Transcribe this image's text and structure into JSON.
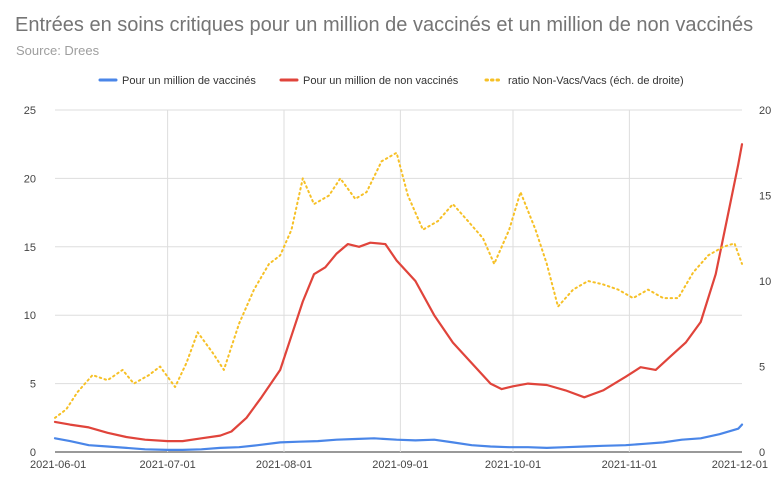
{
  "chart_data": {
    "type": "line",
    "title": "Entrées en soins critiques pour un million de vaccinés et un million de non vaccinés",
    "subtitle": "Source: Drees",
    "x_dates": [
      "2021-06-01",
      "2021-12-01"
    ],
    "x_ticks": [
      "2021-06-01",
      "2021-07-01",
      "2021-08-01",
      "2021-09-01",
      "2021-10-01",
      "2021-11-01",
      "2021-12-01"
    ],
    "y_left": {
      "range": [
        0,
        25
      ],
      "ticks": [
        "0",
        "5",
        "10",
        "15",
        "20",
        "25"
      ]
    },
    "y_right": {
      "range": [
        0,
        20
      ],
      "ticks": [
        "0",
        "5",
        "10",
        "15",
        "20"
      ]
    },
    "grid": true,
    "legend_position": "top",
    "series": [
      {
        "name": "Pour un million de vaccinés",
        "color": "#4a86e8",
        "axis": "left",
        "style": "solid",
        "points": [
          [
            "2021-06-01",
            1.0
          ],
          [
            "2021-06-05",
            0.8
          ],
          [
            "2021-06-10",
            0.5
          ],
          [
            "2021-06-15",
            0.4
          ],
          [
            "2021-06-20",
            0.3
          ],
          [
            "2021-06-25",
            0.2
          ],
          [
            "2021-07-01",
            0.15
          ],
          [
            "2021-07-05",
            0.15
          ],
          [
            "2021-07-10",
            0.2
          ],
          [
            "2021-07-15",
            0.3
          ],
          [
            "2021-07-20",
            0.35
          ],
          [
            "2021-07-25",
            0.5
          ],
          [
            "2021-07-31",
            0.7
          ],
          [
            "2021-08-05",
            0.75
          ],
          [
            "2021-08-10",
            0.8
          ],
          [
            "2021-08-15",
            0.9
          ],
          [
            "2021-08-20",
            0.95
          ],
          [
            "2021-08-25",
            1.0
          ],
          [
            "2021-08-31",
            0.9
          ],
          [
            "2021-09-05",
            0.85
          ],
          [
            "2021-09-10",
            0.9
          ],
          [
            "2021-09-15",
            0.7
          ],
          [
            "2021-09-20",
            0.5
          ],
          [
            "2021-09-25",
            0.4
          ],
          [
            "2021-09-30",
            0.35
          ],
          [
            "2021-10-05",
            0.35
          ],
          [
            "2021-10-10",
            0.3
          ],
          [
            "2021-10-15",
            0.35
          ],
          [
            "2021-10-20",
            0.4
          ],
          [
            "2021-10-25",
            0.45
          ],
          [
            "2021-10-31",
            0.5
          ],
          [
            "2021-11-05",
            0.6
          ],
          [
            "2021-11-10",
            0.7
          ],
          [
            "2021-11-15",
            0.9
          ],
          [
            "2021-11-20",
            1.0
          ],
          [
            "2021-11-25",
            1.3
          ],
          [
            "2021-11-30",
            1.7
          ],
          [
            "2021-12-01",
            2.0
          ]
        ]
      },
      {
        "name": "Pour un million de non vaccinés",
        "color": "#e0443b",
        "axis": "left",
        "style": "solid",
        "points": [
          [
            "2021-06-01",
            2.2
          ],
          [
            "2021-06-05",
            2.0
          ],
          [
            "2021-06-10",
            1.8
          ],
          [
            "2021-06-15",
            1.4
          ],
          [
            "2021-06-20",
            1.1
          ],
          [
            "2021-06-25",
            0.9
          ],
          [
            "2021-07-01",
            0.8
          ],
          [
            "2021-07-05",
            0.8
          ],
          [
            "2021-07-10",
            1.0
          ],
          [
            "2021-07-15",
            1.2
          ],
          [
            "2021-07-18",
            1.5
          ],
          [
            "2021-07-22",
            2.5
          ],
          [
            "2021-07-26",
            4.0
          ],
          [
            "2021-07-31",
            6.0
          ],
          [
            "2021-08-03",
            8.5
          ],
          [
            "2021-08-06",
            11.0
          ],
          [
            "2021-08-09",
            13.0
          ],
          [
            "2021-08-12",
            13.5
          ],
          [
            "2021-08-15",
            14.5
          ],
          [
            "2021-08-18",
            15.2
          ],
          [
            "2021-08-21",
            15.0
          ],
          [
            "2021-08-24",
            15.3
          ],
          [
            "2021-08-28",
            15.2
          ],
          [
            "2021-08-31",
            14.0
          ],
          [
            "2021-09-05",
            12.5
          ],
          [
            "2021-09-10",
            10.0
          ],
          [
            "2021-09-15",
            8.0
          ],
          [
            "2021-09-20",
            6.5
          ],
          [
            "2021-09-25",
            5.0
          ],
          [
            "2021-09-28",
            4.6
          ],
          [
            "2021-10-01",
            4.8
          ],
          [
            "2021-10-05",
            5.0
          ],
          [
            "2021-10-10",
            4.9
          ],
          [
            "2021-10-15",
            4.5
          ],
          [
            "2021-10-20",
            4.0
          ],
          [
            "2021-10-25",
            4.5
          ],
          [
            "2021-10-31",
            5.5
          ],
          [
            "2021-11-04",
            6.2
          ],
          [
            "2021-11-08",
            6.0
          ],
          [
            "2021-11-12",
            7.0
          ],
          [
            "2021-11-16",
            8.0
          ],
          [
            "2021-11-20",
            9.5
          ],
          [
            "2021-11-24",
            13.0
          ],
          [
            "2021-11-27",
            17.0
          ],
          [
            "2021-11-30",
            21.0
          ],
          [
            "2021-12-01",
            22.5
          ]
        ]
      },
      {
        "name": "ratio Non-Vacs/Vacs (éch. de droite)",
        "color": "#f6c026",
        "axis": "right",
        "style": "dotted",
        "points": [
          [
            "2021-06-01",
            2.0
          ],
          [
            "2021-06-04",
            2.5
          ],
          [
            "2021-06-07",
            3.5
          ],
          [
            "2021-06-11",
            4.5
          ],
          [
            "2021-06-15",
            4.2
          ],
          [
            "2021-06-19",
            4.8
          ],
          [
            "2021-06-22",
            4.0
          ],
          [
            "2021-06-26",
            4.5
          ],
          [
            "2021-06-29",
            5.0
          ],
          [
            "2021-07-03",
            3.8
          ],
          [
            "2021-07-06",
            5.2
          ],
          [
            "2021-07-09",
            7.0
          ],
          [
            "2021-07-13",
            5.8
          ],
          [
            "2021-07-16",
            4.8
          ],
          [
            "2021-07-20",
            7.5
          ],
          [
            "2021-07-24",
            9.5
          ],
          [
            "2021-07-28",
            11.0
          ],
          [
            "2021-07-31",
            11.5
          ],
          [
            "2021-08-03",
            13.0
          ],
          [
            "2021-08-06",
            16.0
          ],
          [
            "2021-08-09",
            14.5
          ],
          [
            "2021-08-13",
            15.0
          ],
          [
            "2021-08-16",
            16.0
          ],
          [
            "2021-08-20",
            14.8
          ],
          [
            "2021-08-23",
            15.2
          ],
          [
            "2021-08-27",
            17.0
          ],
          [
            "2021-08-31",
            17.5
          ],
          [
            "2021-09-03",
            15.0
          ],
          [
            "2021-09-07",
            13.0
          ],
          [
            "2021-09-11",
            13.5
          ],
          [
            "2021-09-15",
            14.5
          ],
          [
            "2021-09-19",
            13.5
          ],
          [
            "2021-09-23",
            12.5
          ],
          [
            "2021-09-26",
            11.0
          ],
          [
            "2021-09-30",
            13.0
          ],
          [
            "2021-10-03",
            15.2
          ],
          [
            "2021-10-07",
            13.0
          ],
          [
            "2021-10-10",
            11.0
          ],
          [
            "2021-10-13",
            8.5
          ],
          [
            "2021-10-17",
            9.5
          ],
          [
            "2021-10-21",
            10.0
          ],
          [
            "2021-10-25",
            9.8
          ],
          [
            "2021-10-29",
            9.5
          ],
          [
            "2021-11-02",
            9.0
          ],
          [
            "2021-11-06",
            9.5
          ],
          [
            "2021-11-10",
            9.0
          ],
          [
            "2021-11-14",
            9.0
          ],
          [
            "2021-11-18",
            10.5
          ],
          [
            "2021-11-22",
            11.5
          ],
          [
            "2021-11-26",
            12.0
          ],
          [
            "2021-11-29",
            12.2
          ],
          [
            "2021-12-01",
            11.0
          ]
        ]
      }
    ]
  }
}
